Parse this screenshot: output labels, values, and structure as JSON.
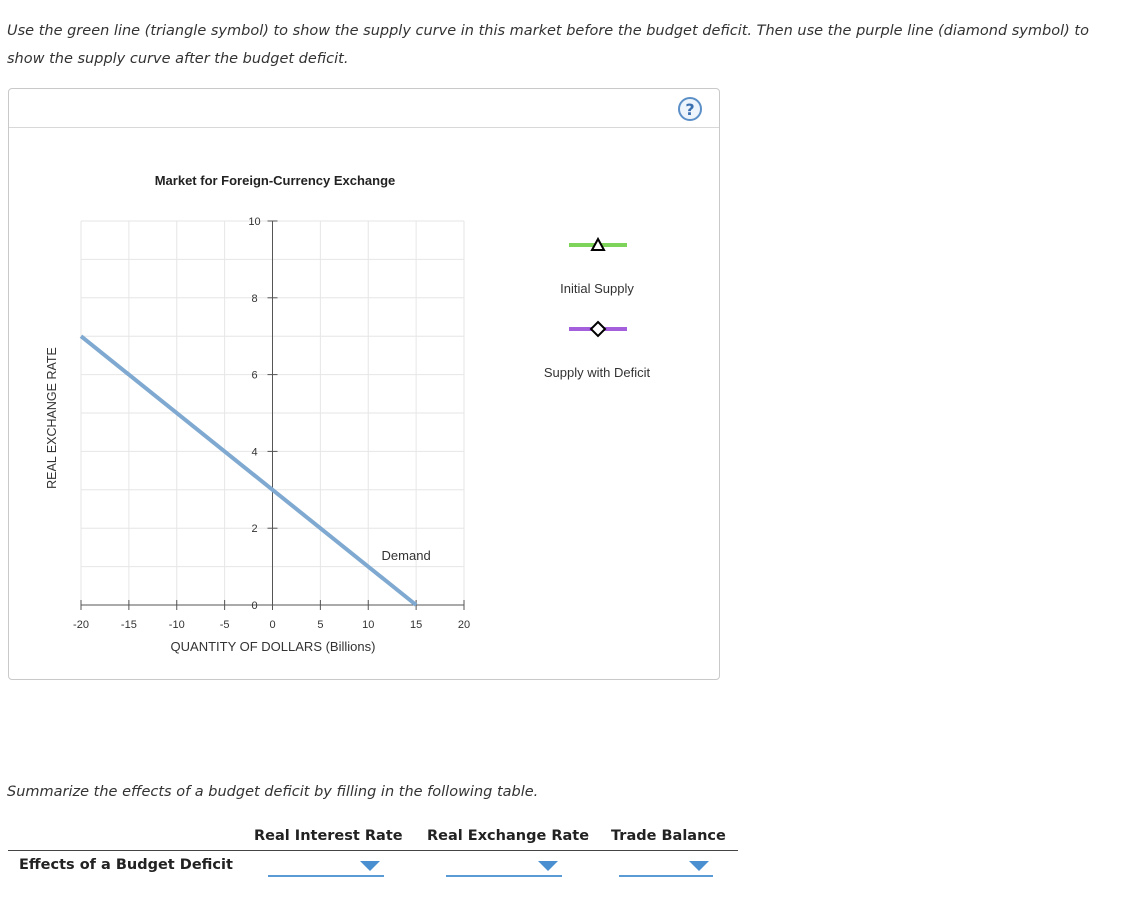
{
  "instructions": "Use the green line (triangle symbol) to show the supply curve in this market before the budget deficit. Then use the purple line (diamond symbol) to show the supply curve after the budget deficit.",
  "help_label": "?",
  "chart_data": {
    "type": "line",
    "title": "Market for Foreign-Currency Exchange",
    "xlabel": "QUANTITY OF DOLLARS (Billions)",
    "ylabel": "REAL EXCHANGE RATE",
    "xlim": [
      -20,
      20
    ],
    "ylim": [
      0,
      10
    ],
    "xticks": [
      -20,
      -15,
      -10,
      -5,
      0,
      5,
      10,
      15,
      20
    ],
    "yticks": [
      0,
      2,
      4,
      6,
      8,
      10
    ],
    "grid": true,
    "series": [
      {
        "name": "Demand",
        "x": [
          -20,
          15
        ],
        "y": [
          7,
          0
        ],
        "color": "#7fa9d0"
      }
    ],
    "legend_tools": [
      {
        "label": "Initial Supply",
        "symbol": "triangle",
        "color": "#7ed35a"
      },
      {
        "label": "Supply with Deficit",
        "symbol": "diamond",
        "color": "#a35fdc"
      }
    ]
  },
  "summary_text": "Summarize the effects of a budget deficit by filling in the following table.",
  "table": {
    "columns": [
      "Real Interest Rate",
      "Real Exchange Rate",
      "Trade Balance"
    ],
    "row_label": "Effects of a Budget Deficit"
  }
}
